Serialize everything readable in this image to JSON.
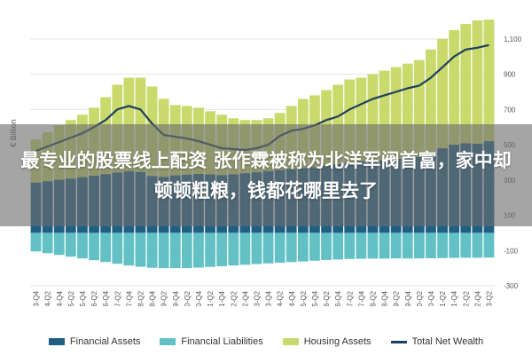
{
  "banner": {
    "headline": "最专业的股票线上配资 张作霖被称为北洋军阀首富，家中却顿顿粗粮，钱都花哪里去了"
  },
  "chart_data": {
    "type": "area",
    "ylabel": "€ Billion",
    "ylim": [
      -300,
      1200
    ],
    "yticks": [
      -300,
      -100,
      100,
      300,
      500,
      700,
      900,
      1100
    ],
    "ytick_labels": [
      "-300",
      "-100",
      "100",
      "300",
      "500",
      "700",
      "900",
      "1,100"
    ],
    "grid": true,
    "legend_position": "bottom",
    "x": [
      "2003-Q4",
      "2004-Q2",
      "2004-Q4",
      "2005-Q2",
      "2005-Q4",
      "2006-Q2",
      "2006-Q4",
      "2007-Q2",
      "2007-Q4",
      "2008-Q2",
      "2008-Q4",
      "2009-Q2",
      "2009-Q4",
      "2010-Q2",
      "2010-Q4",
      "2011-Q2",
      "2011-Q4",
      "2012-Q2",
      "2012-Q4",
      "2013-Q2",
      "2013-Q4",
      "2014-Q2",
      "2014-Q4",
      "2015-Q2",
      "2015-Q4",
      "2016-Q2",
      "2016-Q4",
      "2017-Q2",
      "2017-Q4",
      "2018-Q2",
      "2018-Q4",
      "2019-Q2",
      "2019-Q4",
      "2020-Q2",
      "2020-Q4",
      "2021-Q2",
      "2021-Q4",
      "2022-Q2",
      "2022-Q4",
      "2023-Q2"
    ],
    "series": [
      {
        "name": "Financial Assets",
        "color": "#1f5f83",
        "values": [
          285,
          293,
          301,
          308,
          316,
          324,
          333,
          342,
          350,
          345,
          322,
          318,
          326,
          330,
          334,
          332,
          328,
          332,
          338,
          344,
          350,
          356,
          362,
          368,
          372,
          380,
          390,
          398,
          405,
          410,
          410,
          420,
          435,
          430,
          455,
          480,
          500,
          508,
          505,
          520
        ]
      },
      {
        "name": "Financial Liabilities",
        "color": "#63c1c6",
        "values": [
          -105,
          -115,
          -125,
          -135,
          -145,
          -155,
          -165,
          -175,
          -185,
          -192,
          -198,
          -200,
          -200,
          -200,
          -197,
          -193,
          -189,
          -185,
          -181,
          -177,
          -173,
          -169,
          -166,
          -162,
          -158,
          -154,
          -151,
          -148,
          -147,
          -146,
          -146,
          -145,
          -145,
          -145,
          -144,
          -143,
          -142,
          -141,
          -141,
          -140
        ]
      },
      {
        "name": "Housing Assets",
        "color": "#c9d96b",
        "values": [
          530,
          570,
          610,
          640,
          670,
          710,
          770,
          840,
          880,
          880,
          830,
          760,
          725,
          720,
          710,
          690,
          670,
          650,
          640,
          640,
          650,
          680,
          720,
          760,
          780,
          810,
          840,
          870,
          880,
          900,
          920,
          940,
          960,
          980,
          1040,
          1100,
          1150,
          1185,
          1205,
          1210
        ]
      },
      {
        "name": "Total Net Wealth",
        "color": "#1d3f5e",
        "values": [
          465,
          490,
          515,
          540,
          565,
          600,
          640,
          700,
          720,
          700,
          620,
          555,
          545,
          535,
          520,
          500,
          480,
          475,
          470,
          480,
          500,
          550,
          580,
          590,
          610,
          640,
          660,
          700,
          730,
          760,
          780,
          800,
          820,
          835,
          880,
          940,
          1000,
          1040,
          1050,
          1065
        ]
      }
    ]
  }
}
